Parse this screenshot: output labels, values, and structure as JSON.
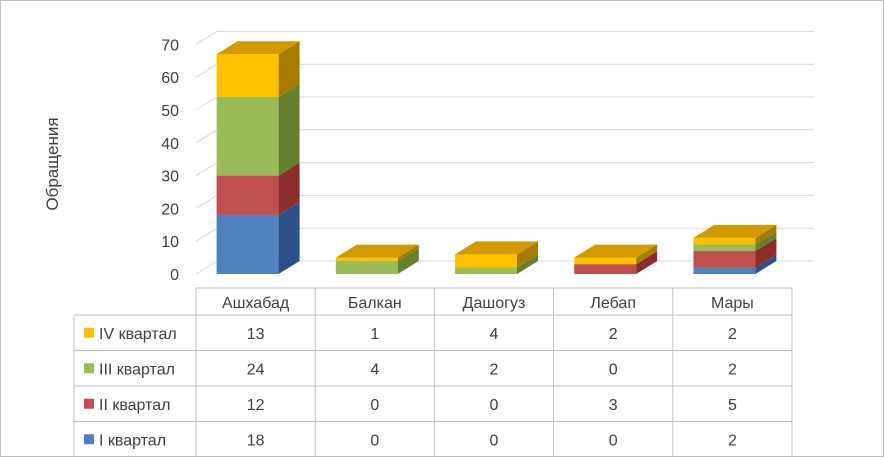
{
  "chart_data": {
    "type": "bar",
    "stacked": true,
    "three_d": true,
    "ylabel": "Обращения",
    "ylim": [
      0,
      70
    ],
    "yticks": [
      0,
      10,
      20,
      30,
      40,
      50,
      60,
      70
    ],
    "grid": true,
    "legend": "data-table-left",
    "categories": [
      "Ашхабад",
      "Балкан",
      "Дашогуз",
      "Лебап",
      "Мары"
    ],
    "series": [
      {
        "name": "I квартал",
        "values": [
          18,
          0,
          0,
          0,
          2
        ],
        "color": "#4F81BD",
        "color_dark": "#2C5087",
        "color_top": "#6A96CC"
      },
      {
        "name": "II квартал",
        "values": [
          12,
          0,
          0,
          3,
          5
        ],
        "color": "#C0504D",
        "color_dark": "#8B2E2B",
        "color_top": "#D06D6A"
      },
      {
        "name": "III квартал",
        "values": [
          24,
          4,
          2,
          0,
          2
        ],
        "color": "#9BBB59",
        "color_dark": "#66802F",
        "color_top": "#B0CC78"
      },
      {
        "name": "IV квартал",
        "values": [
          13,
          1,
          4,
          2,
          2
        ],
        "color": "#FFC000",
        "color_dark": "#A67C00",
        "color_top": "#D29A00"
      }
    ],
    "table_row_order": [
      3,
      2,
      1,
      0
    ]
  }
}
